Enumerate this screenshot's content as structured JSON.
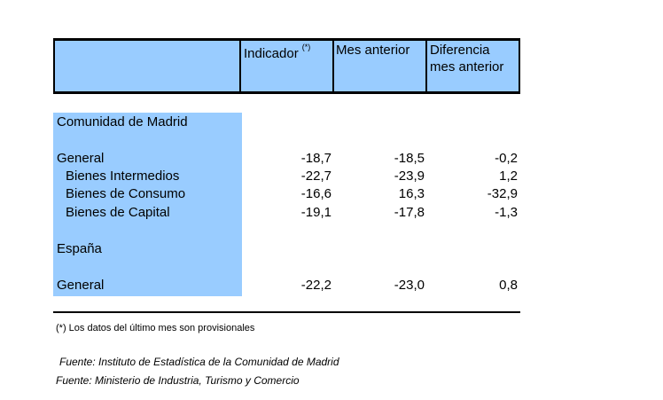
{
  "header": {
    "col1_label": "Indicador",
    "col1_sup": "(*)",
    "col2_label": "Mes anterior",
    "col3_line1": "Diferencia",
    "col3_line2": "mes anterior"
  },
  "sections": [
    {
      "title": "Comunidad de Madrid",
      "rows": [
        {
          "label": "General",
          "indicador": "-18,7",
          "mes_anterior": "-18,5",
          "diferencia": "-0,2"
        },
        {
          "label": "Bienes Intermedios",
          "indicador": "-22,7",
          "mes_anterior": "-23,9",
          "diferencia": "1,2"
        },
        {
          "label": "Bienes de Consumo",
          "indicador": "-16,6",
          "mes_anterior": "16,3",
          "diferencia": "-32,9"
        },
        {
          "label": "Bienes de Capital",
          "indicador": "-19,1",
          "mes_anterior": "-17,8",
          "diferencia": "-1,3"
        }
      ]
    },
    {
      "title": "España",
      "rows": [
        {
          "label": "General",
          "indicador": "-22,2",
          "mes_anterior": "-23,0",
          "diferencia": "0,8"
        }
      ]
    }
  ],
  "footnote": "(*) Los datos del último mes son provisionales",
  "sources": [
    "Fuente: Instituto de Estadística de la Comunidad de Madrid",
    "Fuente: Ministerio de Industria, Turismo y Comercio"
  ]
}
